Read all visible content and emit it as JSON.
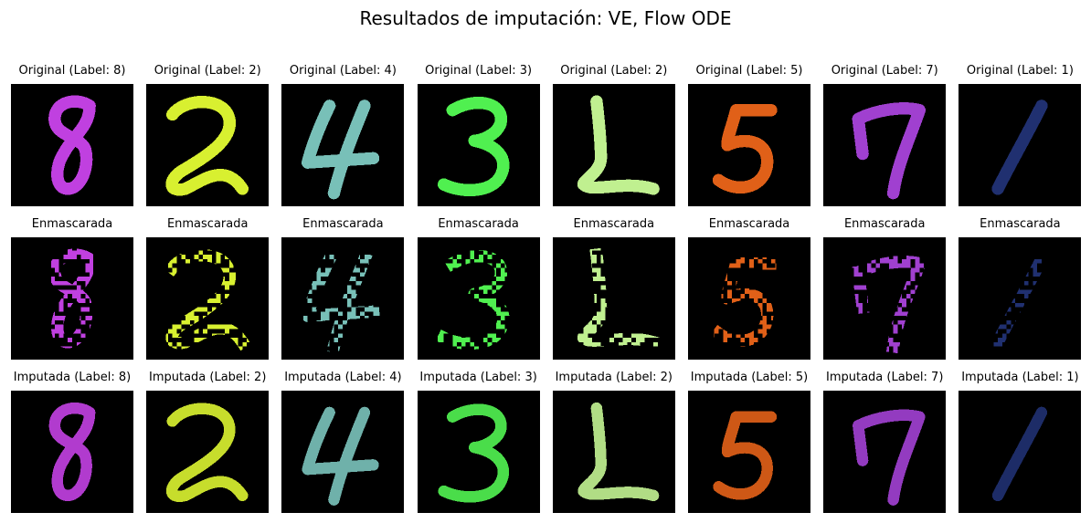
{
  "figure": {
    "title": "Resultados de imputación: VE, Flow ODE"
  },
  "rows": [
    {
      "kind": "original",
      "titles": [
        "Original (Label: 8)",
        "Original (Label: 2)",
        "Original (Label: 4)",
        "Original (Label: 3)",
        "Original (Label: 2)",
        "Original (Label: 5)",
        "Original (Label: 7)",
        "Original (Label: 1)"
      ]
    },
    {
      "kind": "masked",
      "titles": [
        "Enmascarada",
        "Enmascarada",
        "Enmascarada",
        "Enmascarada",
        "Enmascarada",
        "Enmascarada",
        "Enmascarada",
        "Enmascarada"
      ]
    },
    {
      "kind": "imputed",
      "titles": [
        "Imputada (Label: 8)",
        "Imputada (Label: 2)",
        "Imputada (Label: 4)",
        "Imputada (Label: 3)",
        "Imputada (Label: 2)",
        "Imputada (Label: 5)",
        "Imputada (Label: 7)",
        "Imputada (Label: 1)"
      ]
    }
  ],
  "digits": [
    {
      "label": "8",
      "color": "#c040e0"
    },
    {
      "label": "2",
      "color": "#d8f030"
    },
    {
      "label": "4",
      "color": "#78c0b8"
    },
    {
      "label": "3",
      "color": "#50f050"
    },
    {
      "label": "2",
      "color": "#c0f090"
    },
    {
      "label": "5",
      "color": "#e06018"
    },
    {
      "label": "7",
      "color": "#a040d0"
    },
    {
      "label": "1",
      "color": "#203070"
    }
  ]
}
